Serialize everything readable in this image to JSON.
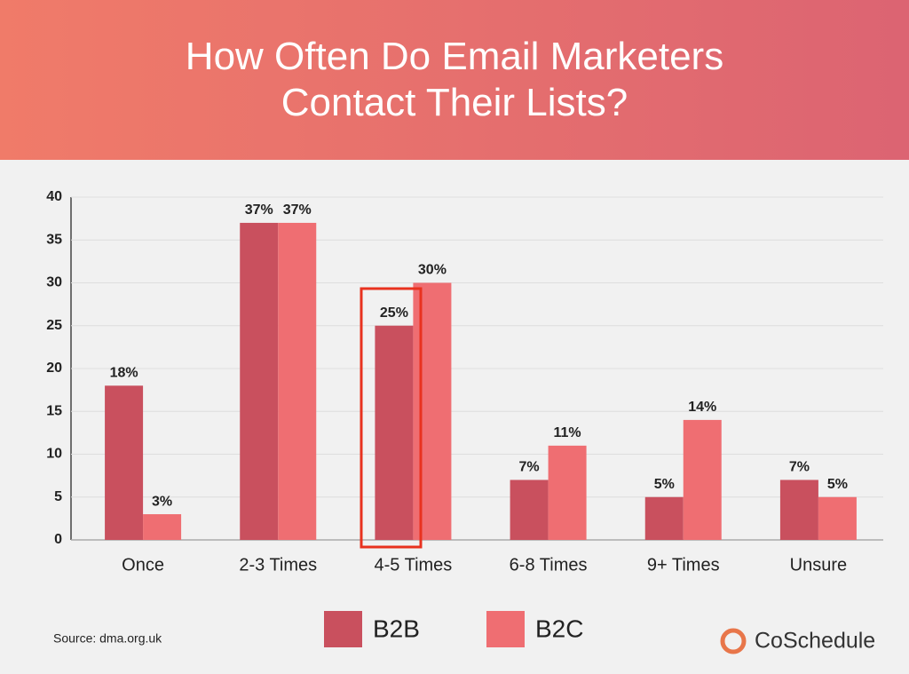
{
  "chart_data": {
    "type": "bar",
    "title": "How Often Do Email Marketers Contact Their Lists?",
    "categories": [
      "Once",
      "2-3 Times",
      "4-5 Times",
      "6-8 Times",
      "9+ Times",
      "Unsure"
    ],
    "series": [
      {
        "name": "B2B",
        "color": "#c9505e",
        "values": [
          18,
          37,
          25,
          7,
          5,
          7
        ],
        "value_labels": [
          "18%",
          "37%",
          "25%",
          "7%",
          "5%",
          "7%"
        ]
      },
      {
        "name": "B2C",
        "color": "#ef6e72",
        "values": [
          3,
          37,
          30,
          11,
          14,
          5
        ],
        "value_labels": [
          "3%",
          "37%",
          "30%",
          "11%",
          "14%",
          "5%"
        ]
      }
    ],
    "ylim": [
      0,
      40
    ],
    "yticks": [
      0,
      5,
      10,
      15,
      20,
      25,
      30,
      35,
      40
    ],
    "grid": true,
    "source": "Source: dma.org.uk",
    "brand": "CoSchedule"
  }
}
